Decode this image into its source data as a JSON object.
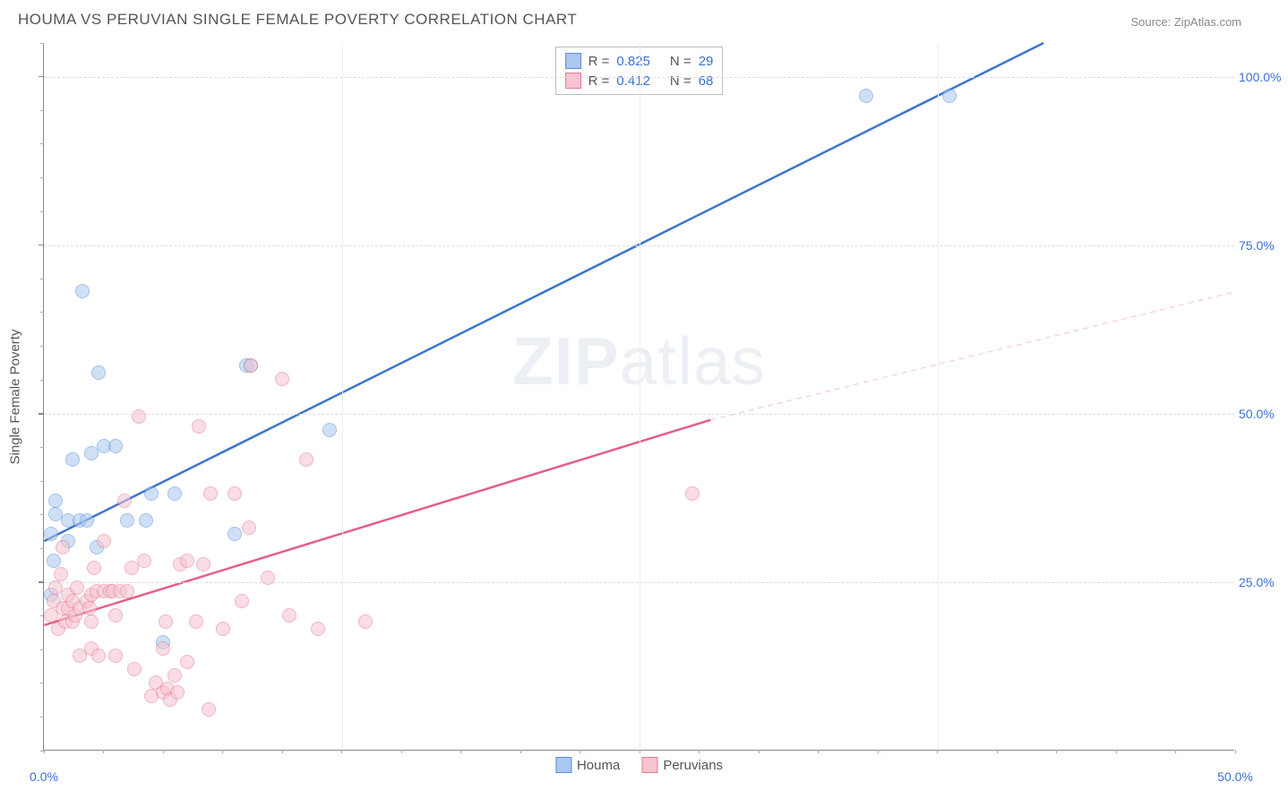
{
  "title": "HOUMA VS PERUVIAN SINGLE FEMALE POVERTY CORRELATION CHART",
  "source_label": "Source: ZipAtlas.com",
  "watermark": {
    "zip": "ZIP",
    "atlas": "atlas"
  },
  "chart": {
    "type": "scatter",
    "ylabel": "Single Female Poverty",
    "xlim": [
      0,
      50
    ],
    "ylim": [
      0,
      105
    ],
    "background_color": "#ffffff",
    "grid_color": "#dddddd",
    "axis_color": "#888888",
    "tick_label_color": "#3a6fd8",
    "ytick_labels": [
      "25.0%",
      "50.0%",
      "75.0%",
      "100.0%"
    ],
    "ytick_positions": [
      25,
      50,
      75,
      100
    ],
    "xtick_labels": [
      "0.0%",
      "50.0%"
    ],
    "xtick_positions": [
      0,
      50
    ],
    "xtick_minor_step": 2.5,
    "ytick_minor_step": 5,
    "xgrid_positions": [
      12.5,
      25,
      37.5
    ],
    "marker_radius": 8,
    "marker_opacity": 0.55,
    "series": [
      {
        "name": "Houma",
        "color_fill": "#a9c7ef",
        "color_stroke": "#5a8fd6",
        "R": "0.825",
        "N": "29",
        "trend": {
          "style": "solid",
          "width": 2.5,
          "color": "#3c74d4",
          "x1": 0,
          "y1": 31,
          "x2": 42,
          "y2": 105
        },
        "trend_extrapolate": null,
        "points": [
          [
            0.3,
            32
          ],
          [
            0.3,
            23
          ],
          [
            0.4,
            28
          ],
          [
            0.5,
            35
          ],
          [
            0.5,
            37
          ],
          [
            1.0,
            31
          ],
          [
            1.0,
            34
          ],
          [
            1.2,
            43
          ],
          [
            1.5,
            34
          ],
          [
            1.6,
            68
          ],
          [
            1.8,
            34
          ],
          [
            2.0,
            44
          ],
          [
            2.2,
            30
          ],
          [
            2.3,
            56
          ],
          [
            2.5,
            45
          ],
          [
            3.0,
            45
          ],
          [
            3.5,
            34
          ],
          [
            4.3,
            34
          ],
          [
            4.5,
            38
          ],
          [
            5.0,
            16
          ],
          [
            5.5,
            38
          ],
          [
            8.0,
            32
          ],
          [
            8.5,
            57
          ],
          [
            8.7,
            57
          ],
          [
            12.0,
            47.5
          ],
          [
            34.5,
            97
          ],
          [
            38.0,
            97
          ]
        ]
      },
      {
        "name": "Peruvians",
        "color_fill": "#f6c3cf",
        "color_stroke": "#e37a95",
        "R": "0.412",
        "N": "68",
        "trend": {
          "style": "solid",
          "width": 2.5,
          "color": "#e55f84",
          "x1": 0,
          "y1": 18.5,
          "x2": 28,
          "y2": 49
        },
        "trend_extrapolate": {
          "style": "dashed",
          "width": 1,
          "color": "#f6c3cf",
          "x1": 28,
          "y1": 49,
          "x2": 50,
          "y2": 68
        },
        "points": [
          [
            0.3,
            20
          ],
          [
            0.4,
            22
          ],
          [
            0.5,
            24
          ],
          [
            0.6,
            18
          ],
          [
            0.7,
            26
          ],
          [
            0.8,
            21
          ],
          [
            0.8,
            30
          ],
          [
            0.9,
            19
          ],
          [
            1.0,
            23
          ],
          [
            1.0,
            21
          ],
          [
            1.2,
            19
          ],
          [
            1.2,
            22
          ],
          [
            1.3,
            20
          ],
          [
            1.4,
            24
          ],
          [
            1.5,
            14
          ],
          [
            1.5,
            21
          ],
          [
            1.8,
            22
          ],
          [
            1.9,
            21
          ],
          [
            2.0,
            15
          ],
          [
            2.0,
            19
          ],
          [
            2.0,
            23
          ],
          [
            2.1,
            27
          ],
          [
            2.2,
            23.5
          ],
          [
            2.3,
            14
          ],
          [
            2.5,
            23.5
          ],
          [
            2.5,
            31
          ],
          [
            2.8,
            23.5
          ],
          [
            2.9,
            23.5
          ],
          [
            3.0,
            14
          ],
          [
            3.0,
            20
          ],
          [
            3.2,
            23.5
          ],
          [
            3.4,
            37
          ],
          [
            3.5,
            23.5
          ],
          [
            3.7,
            27
          ],
          [
            3.8,
            12
          ],
          [
            4.0,
            49.5
          ],
          [
            4.2,
            28
          ],
          [
            4.5,
            8
          ],
          [
            4.7,
            10
          ],
          [
            5.0,
            8.5
          ],
          [
            5.0,
            15
          ],
          [
            5.1,
            19
          ],
          [
            5.2,
            9
          ],
          [
            5.3,
            7.5
          ],
          [
            5.5,
            11
          ],
          [
            5.6,
            8.5
          ],
          [
            5.7,
            27.5
          ],
          [
            6.0,
            13
          ],
          [
            6.0,
            28
          ],
          [
            6.4,
            19
          ],
          [
            6.5,
            48
          ],
          [
            6.7,
            27.5
          ],
          [
            6.9,
            6
          ],
          [
            7.0,
            38
          ],
          [
            7.5,
            18
          ],
          [
            8.0,
            38
          ],
          [
            8.3,
            22
          ],
          [
            8.6,
            33
          ],
          [
            8.7,
            57
          ],
          [
            9.4,
            25.5
          ],
          [
            10.0,
            55
          ],
          [
            10.3,
            20
          ],
          [
            11.0,
            43
          ],
          [
            11.5,
            18
          ],
          [
            13.5,
            19
          ],
          [
            27.2,
            38
          ]
        ]
      }
    ]
  },
  "legend_box": {
    "R_label": "R =",
    "N_label": "N ="
  },
  "bottom_legend": [
    {
      "label": "Houma",
      "fill": "#a9c7ef",
      "stroke": "#5a8fd6"
    },
    {
      "label": "Peruvians",
      "fill": "#f6c3cf",
      "stroke": "#e37a95"
    }
  ]
}
